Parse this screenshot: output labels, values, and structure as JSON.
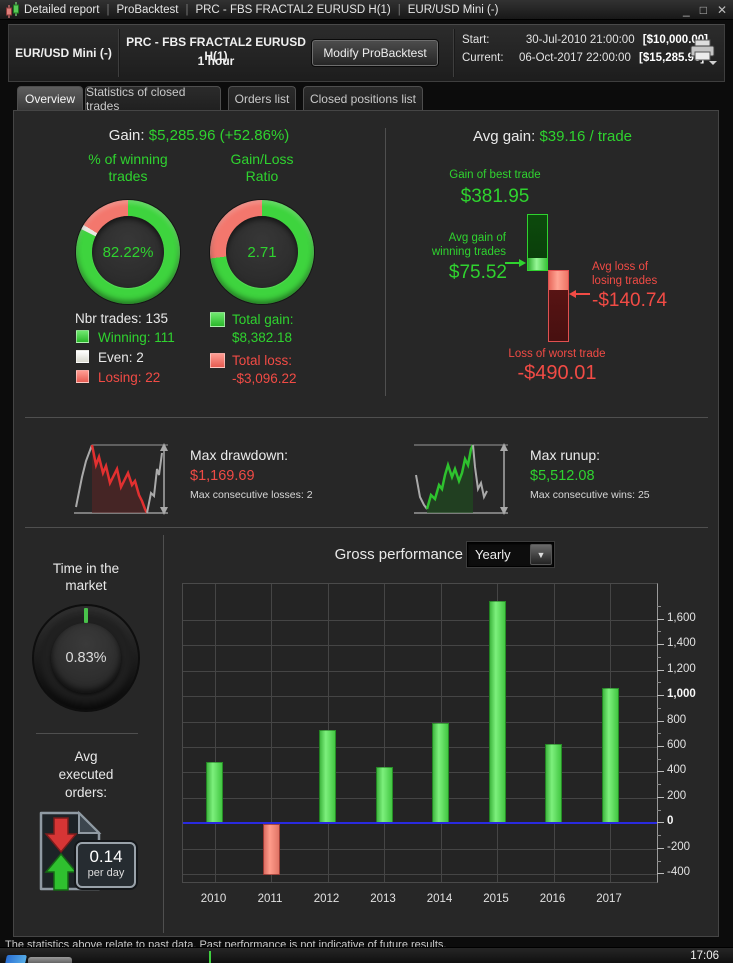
{
  "window": {
    "icon": "candlestick-chart",
    "separator": "|",
    "title_parts": [
      "Detailed report",
      "ProBacktest",
      "PRC - FBS FRACTAL2 EURUSD H(1)",
      "EUR/USD Mini (-)"
    ],
    "controls": {
      "minimize": "_",
      "maximize": "□",
      "close": "✕"
    }
  },
  "header": {
    "instrument": "EUR/USD Mini (-)",
    "strategy": "PRC - FBS FRACTAL2 EURUSD H(1)",
    "timeframe": "1 hour",
    "modify_button": "Modify ProBacktest",
    "start": {
      "label": "Start:",
      "datetime": "30-Jul-2010 21:00:00",
      "equity": "[$10,000.00]"
    },
    "current": {
      "label": "Current:",
      "datetime": "06-Oct-2017 22:00:00",
      "equity": "[$15,285.96]"
    }
  },
  "tabs": [
    {
      "label": "Overview",
      "active": true
    },
    {
      "label": "Statistics of closed trades",
      "active": false
    },
    {
      "label": "Orders list",
      "active": false
    },
    {
      "label": "Closed positions list",
      "active": false
    }
  ],
  "overview": {
    "gain_label": "Gain:",
    "gain_value": "$5,285.96 (+52.86%)",
    "winning_donut": {
      "title_line1": "% of winning",
      "title_line2": "trades",
      "center_text": "82.22%",
      "segments": {
        "winning_pct": 82.22,
        "even_pct": 1.48,
        "losing_pct": 16.3
      }
    },
    "ratio_donut": {
      "title_line1": "Gain/Loss",
      "title_line2": "Ratio",
      "center_text": "2.71",
      "segments": {
        "gain_pct": 73.03,
        "loss_pct": 26.97
      }
    },
    "nbr_trades_label": "Nbr trades: 135",
    "legend": [
      {
        "label": "Winning: 111",
        "color": "#2fd32f"
      },
      {
        "label": "Even: 2",
        "color": "#e9e9e2"
      },
      {
        "label": "Losing: 22",
        "color": "#f14b45"
      }
    ],
    "totals": {
      "gain_label": "Total gain:",
      "gain_value": "$8,382.18",
      "loss_label": "Total loss:",
      "loss_value": "-$3,096.22"
    },
    "avg_gain_label": "Avg gain:",
    "avg_gain_value": "$39.16 / trade",
    "best_trade": {
      "label": "Gain of best trade",
      "value": "$381.95"
    },
    "avg_win": {
      "label_line1": "Avg gain of",
      "label_line2": "winning trades",
      "value": "$75.52"
    },
    "avg_loss": {
      "label_line1": "Avg loss of",
      "label_line2": "losing trades",
      "value": "-$140.74"
    },
    "worst_trade": {
      "label": "Loss of worst trade",
      "value": "-$490.01"
    }
  },
  "drawdown": {
    "title": "Max drawdown:",
    "value": "$1,169.69",
    "consecutive": "Max consecutive losses: 2"
  },
  "runup": {
    "title": "Max runup:",
    "value": "$5,512.08",
    "consecutive": "Max consecutive wins: 25"
  },
  "time_in_market": {
    "title_line1": "Time in the",
    "title_line2": "market",
    "center_text": "0.83%",
    "pct": 0.83
  },
  "avg_orders": {
    "label_line1": "Avg",
    "label_line2": "executed",
    "label_line3": "orders:",
    "value": "0.14",
    "unit": "per day"
  },
  "performance": {
    "title": "Gross performance",
    "period": "Yearly"
  },
  "chart_data": {
    "type": "bar",
    "title": "Gross performance",
    "period": "Yearly",
    "categories": [
      "2010",
      "2011",
      "2012",
      "2013",
      "2014",
      "2015",
      "2016",
      "2017"
    ],
    "values": [
      480,
      -400,
      730,
      440,
      790,
      1750,
      620,
      1060
    ],
    "ylim": [
      -460,
      1880
    ],
    "yticks": [
      -400,
      -200,
      0,
      200,
      400,
      600,
      800,
      1000,
      1200,
      1400,
      1600
    ],
    "bold_yticks": [
      0,
      1000
    ],
    "grid": true,
    "legend_position": "none",
    "colors": {
      "positive": "#4ade3c",
      "negative": "#f08070",
      "zero_line": "#2a2ae0"
    }
  },
  "footer": {
    "disclaimer": "The statistics above relate to past data. Past performance is not indicative of future results.",
    "clock": "17:06"
  },
  "colors": {
    "green": "#2fd32f",
    "red": "#f14b45",
    "ring_green": "#3ed43e",
    "ring_red": "#f3776d",
    "ring_white": "#e8e8e2"
  }
}
